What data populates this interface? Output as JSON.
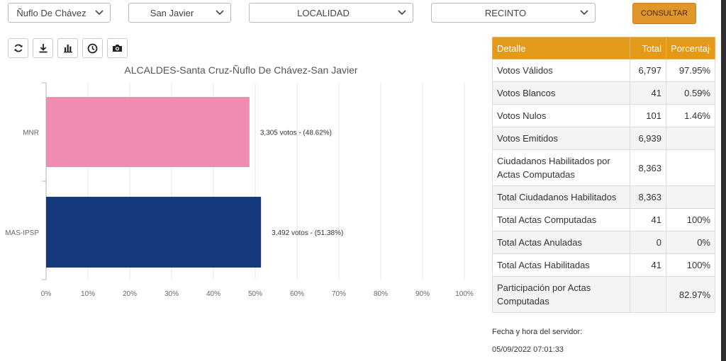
{
  "filters": {
    "municipio": "Ñuflo De Chávez",
    "provincia_sub": "San Javier",
    "localidad": "LOCALIDAD",
    "recinto": "RECINTO",
    "consultar_label": "CONSULTAR"
  },
  "toolbar": {
    "refresh_icon": "refresh-icon",
    "download_icon": "download-icon",
    "chart_icon": "bar-chart-icon",
    "history_icon": "clock-icon",
    "screenshot_icon": "camera-icon"
  },
  "chart_data": {
    "type": "bar",
    "orientation": "horizontal",
    "title": "ALCALDES-Santa Cruz-Ñuflo De Chávez-San Javier",
    "categories": [
      "MNR",
      "MAS-IPSP"
    ],
    "values": [
      48.62,
      51.38
    ],
    "labels": [
      "3,305 votos - (48.62%)",
      "3,492 votos - (51.38%)"
    ],
    "colors": [
      "#f08cb3",
      "#153a7e"
    ],
    "xlim": [
      0,
      100
    ],
    "ticks": [
      "0%",
      "10%",
      "20%",
      "30%",
      "40%",
      "50%",
      "60%",
      "70%",
      "80%",
      "90%",
      "100%"
    ],
    "grid": true
  },
  "table": {
    "headers": [
      "Detalle",
      "Total",
      "Porcentaje"
    ],
    "rows": [
      {
        "label": "Votos Válidos",
        "total": "6,797",
        "pct": "97.95%"
      },
      {
        "label": "Votos Blancos",
        "total": "41",
        "pct": "0.59%"
      },
      {
        "label": "Votos Nulos",
        "total": "101",
        "pct": "1.46%"
      },
      {
        "label": "Votos Emitidos",
        "total": "6,939",
        "pct": ""
      },
      {
        "label": "Ciudadanos Habilitados por Actas Computadas",
        "total": "8,363",
        "pct": ""
      },
      {
        "label": "Total Ciudadanos Habilitados",
        "total": "8,363",
        "pct": ""
      },
      {
        "label": "Total Actas Computadas",
        "total": "41",
        "pct": "100%"
      },
      {
        "label": "Total Actas Anuladas",
        "total": "0",
        "pct": "0%"
      },
      {
        "label": "Total Actas Habilitadas",
        "total": "41",
        "pct": "100%"
      },
      {
        "label": "Participación por Actas Computadas",
        "total": "",
        "pct": "82.97%"
      }
    ]
  },
  "server": {
    "label": "Fecha y hora del servidor:",
    "datetime": "05/09/2022 07:01:33"
  }
}
